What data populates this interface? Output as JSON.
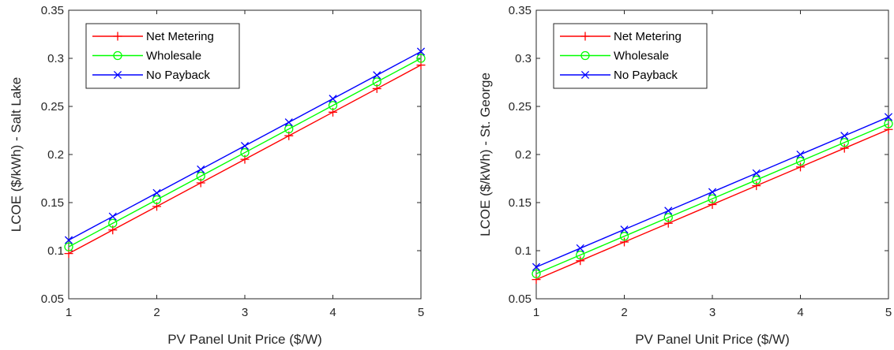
{
  "chart_data": [
    {
      "type": "line",
      "xlabel": "PV Panel Unit Price ($/W)",
      "ylabel": "LCOE ($/kWh) - Salt Lake",
      "xlim": [
        1,
        5
      ],
      "ylim": [
        0.05,
        0.35
      ],
      "x_ticks": [
        "1",
        "2",
        "3",
        "4",
        "5"
      ],
      "y_ticks": [
        "0.05",
        "0.1",
        "0.15",
        "0.2",
        "0.25",
        "0.3",
        "0.35"
      ],
      "legend_position": "top-left",
      "grid": false,
      "x": [
        1,
        1.5,
        2,
        2.5,
        3,
        3.5,
        4,
        4.5,
        5
      ],
      "series": [
        {
          "name": "Net Metering",
          "color": "#ff0000",
          "marker": "plus",
          "values": [
            0.097,
            0.1215,
            0.146,
            0.1705,
            0.195,
            0.2195,
            0.244,
            0.2685,
            0.293
          ]
        },
        {
          "name": "Wholesale",
          "color": "#00ff00",
          "marker": "circle",
          "values": [
            0.104,
            0.1285,
            0.153,
            0.1775,
            0.202,
            0.2265,
            0.251,
            0.2755,
            0.3
          ]
        },
        {
          "name": "No Payback",
          "color": "#0000ff",
          "marker": "x",
          "values": [
            0.111,
            0.1355,
            0.16,
            0.1845,
            0.209,
            0.2335,
            0.258,
            0.2825,
            0.307
          ]
        }
      ]
    },
    {
      "type": "line",
      "xlabel": "PV Panel Unit Price ($/W)",
      "ylabel": "LCOE ($/kWh) - St. George",
      "xlim": [
        1,
        5
      ],
      "ylim": [
        0.05,
        0.35
      ],
      "x_ticks": [
        "1",
        "2",
        "3",
        "4",
        "5"
      ],
      "y_ticks": [
        "0.05",
        "0.1",
        "0.15",
        "0.2",
        "0.25",
        "0.3",
        "0.35"
      ],
      "legend_position": "top-left",
      "grid": false,
      "x": [
        1,
        1.5,
        2,
        2.5,
        3,
        3.5,
        4,
        4.5,
        5
      ],
      "series": [
        {
          "name": "Net Metering",
          "color": "#ff0000",
          "marker": "plus",
          "values": [
            0.07,
            0.0895,
            0.109,
            0.1285,
            0.148,
            0.1675,
            0.187,
            0.2065,
            0.226
          ]
        },
        {
          "name": "Wholesale",
          "color": "#00ff00",
          "marker": "circle",
          "values": [
            0.076,
            0.0955,
            0.115,
            0.1345,
            0.154,
            0.1735,
            0.193,
            0.2125,
            0.232
          ]
        },
        {
          "name": "No Payback",
          "color": "#0000ff",
          "marker": "x",
          "values": [
            0.083,
            0.1025,
            0.122,
            0.1415,
            0.161,
            0.1805,
            0.2,
            0.2195,
            0.239
          ]
        }
      ]
    }
  ]
}
